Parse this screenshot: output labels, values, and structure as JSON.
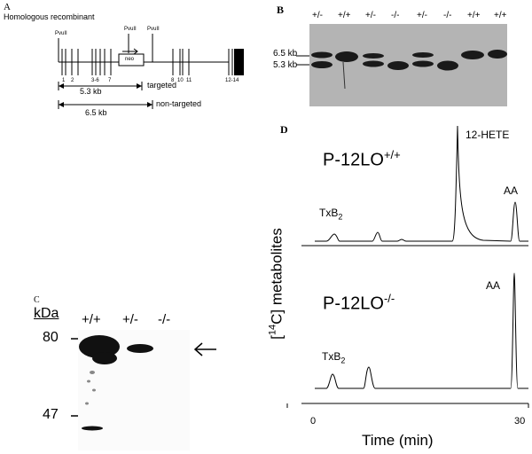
{
  "panel_a": {
    "letter": "A",
    "title": "Homologous recombinant",
    "site_labels": [
      "PvuII",
      "PvuII",
      "PvuII"
    ],
    "neo_label": "neo",
    "exon_labels": [
      "1",
      "2",
      "3-6",
      "7",
      "8",
      "10",
      "11",
      "12-14"
    ],
    "measure_targeted": "5.3 kb",
    "measure_targeted_note": "targeted",
    "measure_nontargeted": "6.5 kb",
    "measure_nontargeted_note": "non-targeted"
  },
  "panel_b": {
    "letter": "B",
    "lanes": [
      "+/-",
      "+/+",
      "+/-",
      "-/-",
      "+/-",
      "-/-",
      "+/+",
      "+/+"
    ],
    "band_upper": "6.5 kb",
    "band_lower": "5.3 kb"
  },
  "panel_c": {
    "letter": "C",
    "unit": "kDa",
    "lanes": [
      "+/+",
      "+/-",
      "-/-"
    ],
    "marker_80": "80",
    "marker_47": "47"
  },
  "panel_d": {
    "letter": "D",
    "ylabel_pre": "[",
    "ylabel_sup": "14",
    "ylabel_post": "C] metabolites",
    "xlabel": "Time (min)",
    "x_start": "0",
    "x_end": "30",
    "top_genotype_base": "P-12LO",
    "top_genotype_sup": "+/+",
    "bottom_genotype_base": "P-12LO",
    "bottom_genotype_sup": "-/-",
    "peak_hete": "12-HETE",
    "peak_aa": "AA",
    "peak_txb_base": "TxB",
    "peak_txb_sub": "2"
  }
}
